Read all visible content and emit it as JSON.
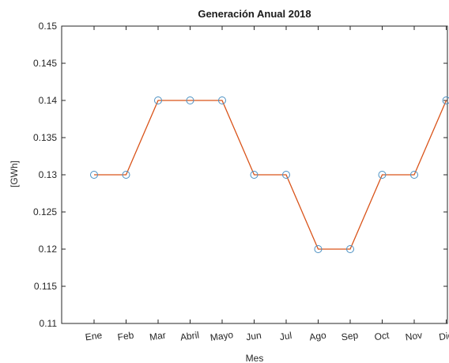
{
  "chart_data": {
    "type": "line",
    "title": "Generación Anual 2018",
    "xlabel": "Mes",
    "ylabel": "[GWh]",
    "categories": [
      "Ene",
      "Feb",
      "Mar",
      "Abril",
      "Mayo",
      "Jun",
      "Jul",
      "Ago",
      "Sep",
      "Oct",
      "Nov",
      "Dic"
    ],
    "series": [
      {
        "values": [
          0.13,
          0.13,
          0.14,
          0.14,
          0.14,
          0.13,
          0.13,
          0.12,
          0.12,
          0.13,
          0.13,
          0.14
        ],
        "line_color": "#d95319",
        "marker_color": "#4a90c2",
        "marker": "circle"
      }
    ],
    "ylim": [
      0.11,
      0.15
    ],
    "yticks": [
      "0.11",
      "0.115",
      "0.12",
      "0.125",
      "0.13",
      "0.135",
      "0.14",
      "0.145",
      "0.15"
    ],
    "grid": false,
    "legend": false
  }
}
